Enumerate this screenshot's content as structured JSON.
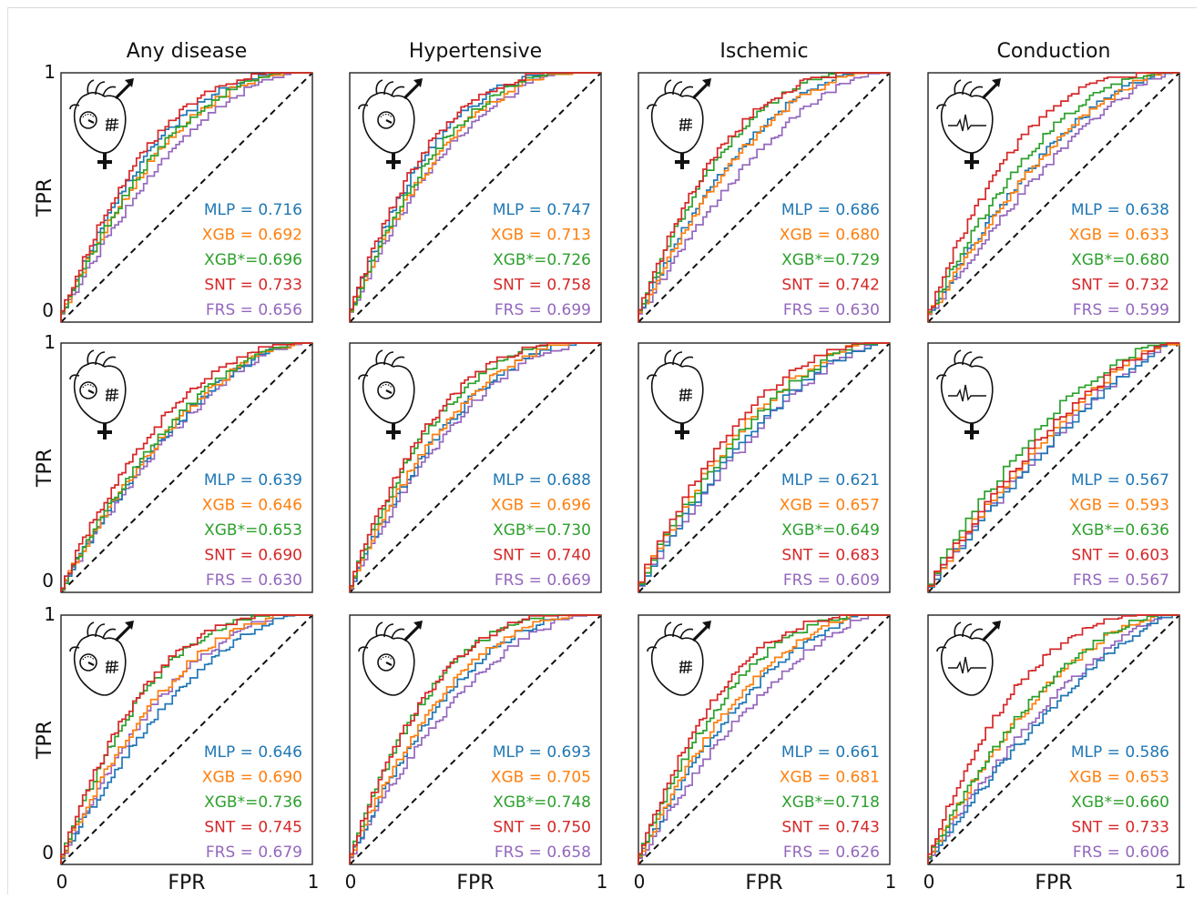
{
  "chart_data": {
    "type": "line",
    "columns": [
      "Any disease",
      "Hypertensive",
      "Ischemic",
      "Conduction"
    ],
    "xlabel": "FPR",
    "ylabel": "TPR",
    "xlim": [
      0,
      1
    ],
    "ylim": [
      0,
      1
    ],
    "x_tick_labels": [
      "0",
      "1"
    ],
    "y_tick_labels": [
      "0",
      "1"
    ],
    "grid": false,
    "legend": "bottom-right text labels (model = AUC)",
    "reference_line": "dashed diagonal",
    "models": [
      "MLP",
      "XGB",
      "XGB*",
      "SNT",
      "FRS"
    ],
    "model_colors": {
      "MLP": "#1f77b4",
      "XGB": "#ff7f0e",
      "XGB*": "#2ca02c",
      "SNT": "#d62728",
      "FRS": "#9467bd"
    },
    "rows": [
      {
        "icon": "heart-female-male-icon",
        "panels": [
          {
            "column": "Any disease",
            "icon": "heart-bp-gauge-infarct-icon",
            "labels": [
              "MLP = 0.716",
              "XGB = 0.692",
              "XGB*=0.696",
              "SNT = 0.733",
              "FRS = 0.656"
            ],
            "auc": {
              "MLP": 0.716,
              "XGB": 0.692,
              "XGB*": 0.696,
              "SNT": 0.733,
              "FRS": 0.656
            }
          },
          {
            "column": "Hypertensive",
            "icon": "heart-bp-gauge-icon",
            "labels": [
              "MLP = 0.747",
              "XGB = 0.713",
              "XGB*=0.726",
              "SNT = 0.758",
              "FRS = 0.699"
            ],
            "auc": {
              "MLP": 0.747,
              "XGB": 0.713,
              "XGB*": 0.726,
              "SNT": 0.758,
              "FRS": 0.699
            }
          },
          {
            "column": "Ischemic",
            "icon": "heart-infarct-icon",
            "labels": [
              "MLP = 0.686",
              "XGB = 0.680",
              "XGB*=0.729",
              "SNT = 0.742",
              "FRS = 0.630"
            ],
            "auc": {
              "MLP": 0.686,
              "XGB": 0.68,
              "XGB*": 0.729,
              "SNT": 0.742,
              "FRS": 0.63
            }
          },
          {
            "column": "Conduction",
            "icon": "heart-ecg-icon",
            "labels": [
              "MLP = 0.638",
              "XGB = 0.633",
              "XGB*=0.680",
              "SNT = 0.732",
              "FRS = 0.599"
            ],
            "auc": {
              "MLP": 0.638,
              "XGB": 0.633,
              "XGB*": 0.68,
              "SNT": 0.732,
              "FRS": 0.599
            }
          }
        ]
      },
      {
        "icon": "heart-female-icon",
        "panels": [
          {
            "column": "Any disease",
            "icon": "heart-bp-gauge-infarct-icon",
            "labels": [
              "MLP = 0.639",
              "XGB = 0.646",
              "XGB*=0.653",
              "SNT = 0.690",
              "FRS = 0.630"
            ],
            "auc": {
              "MLP": 0.639,
              "XGB": 0.646,
              "XGB*": 0.653,
              "SNT": 0.69,
              "FRS": 0.63
            }
          },
          {
            "column": "Hypertensive",
            "icon": "heart-bp-gauge-icon",
            "labels": [
              "MLP = 0.688",
              "XGB = 0.696",
              "XGB*=0.730",
              "SNT = 0.740",
              "FRS = 0.669"
            ],
            "auc": {
              "MLP": 0.688,
              "XGB": 0.696,
              "XGB*": 0.73,
              "SNT": 0.74,
              "FRS": 0.669
            }
          },
          {
            "column": "Ischemic",
            "icon": "heart-infarct-icon",
            "labels": [
              "MLP = 0.621",
              "XGB = 0.657",
              "XGB*=0.649",
              "SNT = 0.683",
              "FRS = 0.609"
            ],
            "auc": {
              "MLP": 0.621,
              "XGB": 0.657,
              "XGB*": 0.649,
              "SNT": 0.683,
              "FRS": 0.609
            }
          },
          {
            "column": "Conduction",
            "icon": "heart-ecg-icon",
            "labels": [
              "MLP = 0.567",
              "XGB = 0.593",
              "XGB*=0.636",
              "SNT = 0.603",
              "FRS = 0.567"
            ],
            "auc": {
              "MLP": 0.567,
              "XGB": 0.593,
              "XGB*": 0.636,
              "SNT": 0.603,
              "FRS": 0.567
            }
          }
        ]
      },
      {
        "icon": "heart-male-icon",
        "panels": [
          {
            "column": "Any disease",
            "icon": "heart-bp-gauge-infarct-icon",
            "labels": [
              "MLP = 0.646",
              "XGB = 0.690",
              "XGB*=0.736",
              "SNT = 0.745",
              "FRS = 0.679"
            ],
            "auc": {
              "MLP": 0.646,
              "XGB": 0.69,
              "XGB*": 0.736,
              "SNT": 0.745,
              "FRS": 0.679
            }
          },
          {
            "column": "Hypertensive",
            "icon": "heart-bp-gauge-icon",
            "labels": [
              "MLP = 0.693",
              "XGB = 0.705",
              "XGB*=0.748",
              "SNT = 0.750",
              "FRS = 0.658"
            ],
            "auc": {
              "MLP": 0.693,
              "XGB": 0.705,
              "XGB*": 0.748,
              "SNT": 0.75,
              "FRS": 0.658
            }
          },
          {
            "column": "Ischemic",
            "icon": "heart-infarct-icon",
            "labels": [
              "MLP = 0.661",
              "XGB = 0.681",
              "XGB*=0.718",
              "SNT = 0.743",
              "FRS = 0.626"
            ],
            "auc": {
              "MLP": 0.661,
              "XGB": 0.681,
              "XGB*": 0.718,
              "SNT": 0.743,
              "FRS": 0.626
            }
          },
          {
            "column": "Conduction",
            "icon": "heart-ecg-icon",
            "labels": [
              "MLP = 0.586",
              "XGB = 0.653",
              "XGB*=0.660",
              "SNT = 0.733",
              "FRS = 0.606"
            ],
            "auc": {
              "MLP": 0.586,
              "XGB": 0.653,
              "XGB*": 0.66,
              "SNT": 0.733,
              "FRS": 0.606
            }
          }
        ]
      }
    ]
  }
}
